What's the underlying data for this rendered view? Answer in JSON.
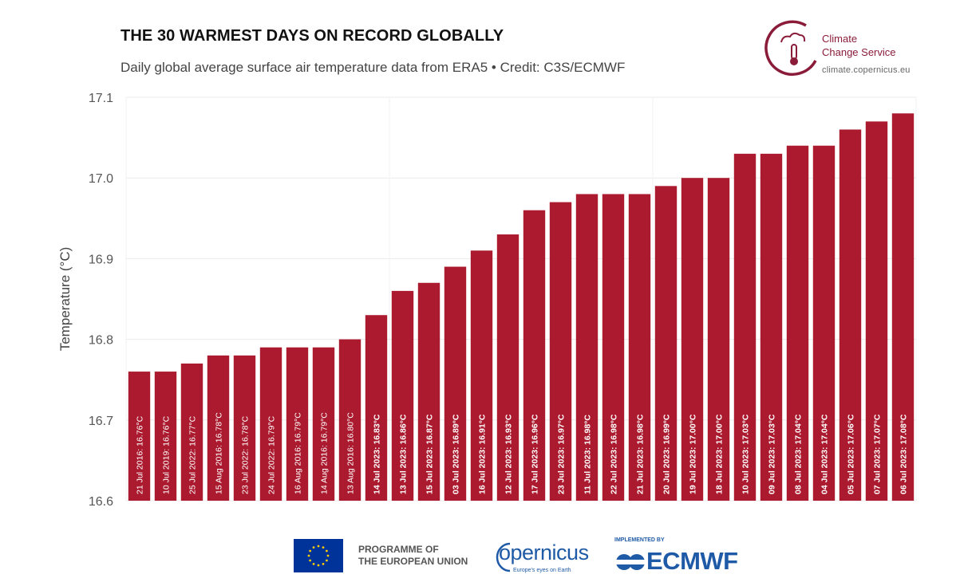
{
  "header": {
    "title": "THE 30 WARMEST DAYS ON RECORD GLOBALLY",
    "subtitle": "Daily global average surface air temperature data from ERA5 • Credit: C3S/ECMWF"
  },
  "c3s_logo": {
    "name_line1": "Climate",
    "name_line2": "Change Service",
    "url": "climate.copernicus.eu",
    "color": "#8a1c3a"
  },
  "footer": {
    "eu_line1": "PROGRAMME OF",
    "eu_line2": "THE EUROPEAN UNION",
    "copernicus_word": "opernicus",
    "copernicus_tagline": "Europe's eyes on Earth",
    "ecmwf_implemented": "IMPLEMENTED BY",
    "ecmwf_word": "ECMWF"
  },
  "chart_data": {
    "type": "bar",
    "title": "THE 30 WARMEST DAYS ON RECORD GLOBALLY",
    "subtitle": "Daily global average surface air temperature data from ERA5 • Credit: C3S/ECMWF",
    "xlabel": "",
    "ylabel": "Temperature (°C)",
    "ylim": [
      16.6,
      17.1
    ],
    "yticks": [
      "16.6",
      "16.7",
      "16.8",
      "16.9",
      "17.0",
      "17.1"
    ],
    "grid": true,
    "bar_color": "#ab1a2e",
    "categories": [
      "21 Jul 2016",
      "10 Jul 2019",
      "25 Jul 2022",
      "15 Aug 2016",
      "23 Jul 2022",
      "24 Jul 2022",
      "16 Aug 2016",
      "14 Aug 2016",
      "13 Aug 2016",
      "14 Jul 2023",
      "13 Jul 2023",
      "15 Jul 2023",
      "03 Jul 2023",
      "16 Jul 2023",
      "12 Jul 2023",
      "17 Jul 2023",
      "23 Jul 2023",
      "11 Jul 2023",
      "22 Jul 2023",
      "21 Jul 2023",
      "20 Jul 2023",
      "19 Jul 2023",
      "18 Jul 2023",
      "10 Jul 2023",
      "09 Jul 2023",
      "08 Jul 2023",
      "04 Jul 2023",
      "05 Jul 2023",
      "07 Jul 2023",
      "06 Jul 2023"
    ],
    "values": [
      16.76,
      16.76,
      16.77,
      16.78,
      16.78,
      16.79,
      16.79,
      16.79,
      16.8,
      16.83,
      16.86,
      16.87,
      16.89,
      16.91,
      16.93,
      16.96,
      16.97,
      16.98,
      16.98,
      16.98,
      16.99,
      17.0,
      17.0,
      17.03,
      17.03,
      17.04,
      17.04,
      17.06,
      17.07,
      17.08
    ],
    "bar_labels": [
      "21 Jul 2016: 16.76°C",
      "10 Jul 2019: 16.76°C",
      "25 Jul 2022: 16.77°C",
      "15 Aug 2016: 16.78°C",
      "23 Jul 2022: 16.78°C",
      "24 Jul 2022: 16.79°C",
      "16 Aug 2016: 16.79°C",
      "14 Aug 2016: 16.79°C",
      "13 Aug 2016: 16.80°C",
      "14 Jul 2023: 16.83°C",
      "13 Jul 2023: 16.86°C",
      "15 Jul 2023: 16.87°C",
      "03 Jul 2023: 16.89°C",
      "16 Jul 2023: 16.91°C",
      "12 Jul 2023: 16.93°C",
      "17 Jul 2023: 16.96°C",
      "23 Jul 2023: 16.97°C",
      "11 Jul 2023: 16.98°C",
      "22 Jul 2023: 16.98°C",
      "21 Jul 2023: 16.98°C",
      "20 Jul 2023: 16.99°C",
      "19 Jul 2023: 17.00°C",
      "18 Jul 2023: 17.00°C",
      "10 Jul 2023: 17.03°C",
      "09 Jul 2023: 17.03°C",
      "08 Jul 2023: 17.04°C",
      "04 Jul 2023: 17.04°C",
      "05 Jul 2023: 17.06°C",
      "07 Jul 2023: 17.07°C",
      "06 Jul 2023: 17.08°C"
    ],
    "bold_from_index": 9
  }
}
